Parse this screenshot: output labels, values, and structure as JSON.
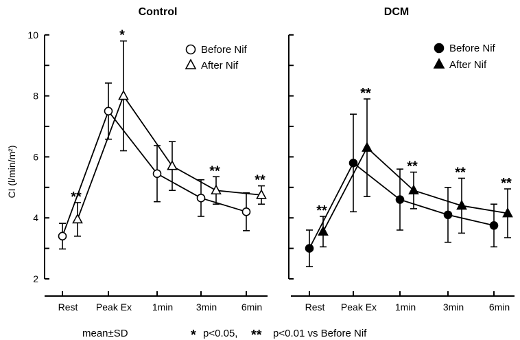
{
  "chart_data": [
    {
      "type": "line",
      "title": "Control",
      "ylabel": "CI (l/min/m²)",
      "xlabel": "",
      "ylim": [
        2,
        10
      ],
      "yticks": [
        "2",
        "4",
        "6",
        "8",
        "10"
      ],
      "categories": [
        "Rest",
        "Peak Ex",
        "1min",
        "3min",
        "6min"
      ],
      "legend_position": "top-right",
      "series": [
        {
          "name": "Before Nif",
          "marker": "open-circle",
          "values": [
            3.4,
            7.5,
            5.45,
            4.65,
            4.2
          ],
          "sd": [
            0.42,
            0.92,
            0.92,
            0.6,
            0.62
          ]
        },
        {
          "name": "After Nif",
          "marker": "open-triangle",
          "values": [
            3.95,
            8.0,
            5.7,
            4.9,
            4.75
          ],
          "sd": [
            0.55,
            1.8,
            0.8,
            0.45,
            0.3
          ]
        }
      ],
      "significance": [
        "**",
        "*",
        "",
        "**",
        "**"
      ]
    },
    {
      "type": "line",
      "title": "DCM",
      "ylabel": "",
      "xlabel": "",
      "ylim": [
        2,
        10
      ],
      "categories": [
        "Rest",
        "Peak Ex",
        "1min",
        "3min",
        "6min"
      ],
      "legend_position": "top-right",
      "series": [
        {
          "name": "Before Nif",
          "marker": "filled-circle",
          "values": [
            3.0,
            5.8,
            4.6,
            4.1,
            3.75
          ],
          "sd": [
            0.6,
            1.6,
            1.0,
            0.9,
            0.7
          ]
        },
        {
          "name": "After Nif",
          "marker": "filled-triangle",
          "values": [
            3.55,
            6.3,
            4.9,
            4.4,
            4.15
          ],
          "sd": [
            0.5,
            1.6,
            0.6,
            0.9,
            0.8
          ]
        }
      ],
      "significance": [
        "**",
        "**",
        "**",
        "**",
        "**"
      ]
    }
  ],
  "footnote": {
    "stats": "mean±SD",
    "sig_one_mark": "*",
    "sig_one_text": "p<0.05,",
    "sig_two_mark": "**",
    "sig_two_text": "p<0.01 vs Before Nif"
  }
}
